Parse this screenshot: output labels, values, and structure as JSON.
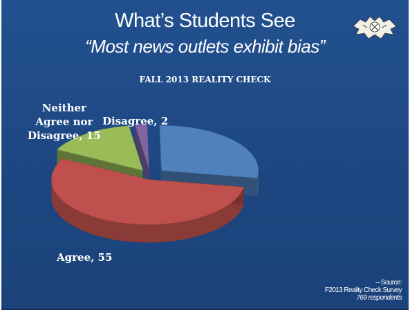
{
  "slide": {
    "title": "What’s Students See",
    "subtitle": "“Most news outlets exhibit bias”",
    "logo_icon": "seal-logo-icon",
    "source_line1": "– Source:",
    "source_line2": "F2013 Reality Check Survey",
    "source_line3": "769 respondents"
  },
  "chart_data": {
    "type": "pie",
    "title": "FALL 2013 REALITY CHECK",
    "slices": [
      {
        "label": "Agree, 55",
        "name": "Agree",
        "value": 55,
        "color": "#c0504d"
      },
      {
        "label": "Neither Agree nor Disagree, 15",
        "name": "Neither Agree nor Disagree",
        "value": 15,
        "color": "#9bbb59"
      },
      {
        "label": "Disagree, 2",
        "name": "Disagree",
        "value": 2,
        "color": "#8064a2"
      },
      {
        "label": "",
        "name": "",
        "value": 28,
        "color": "#4f81bd"
      }
    ],
    "labels_display": {
      "neither": [
        "Neither",
        "Agree nor",
        "Disagree, 15"
      ],
      "disagree": "Disagree, 2",
      "agree": "Agree, 55"
    }
  }
}
